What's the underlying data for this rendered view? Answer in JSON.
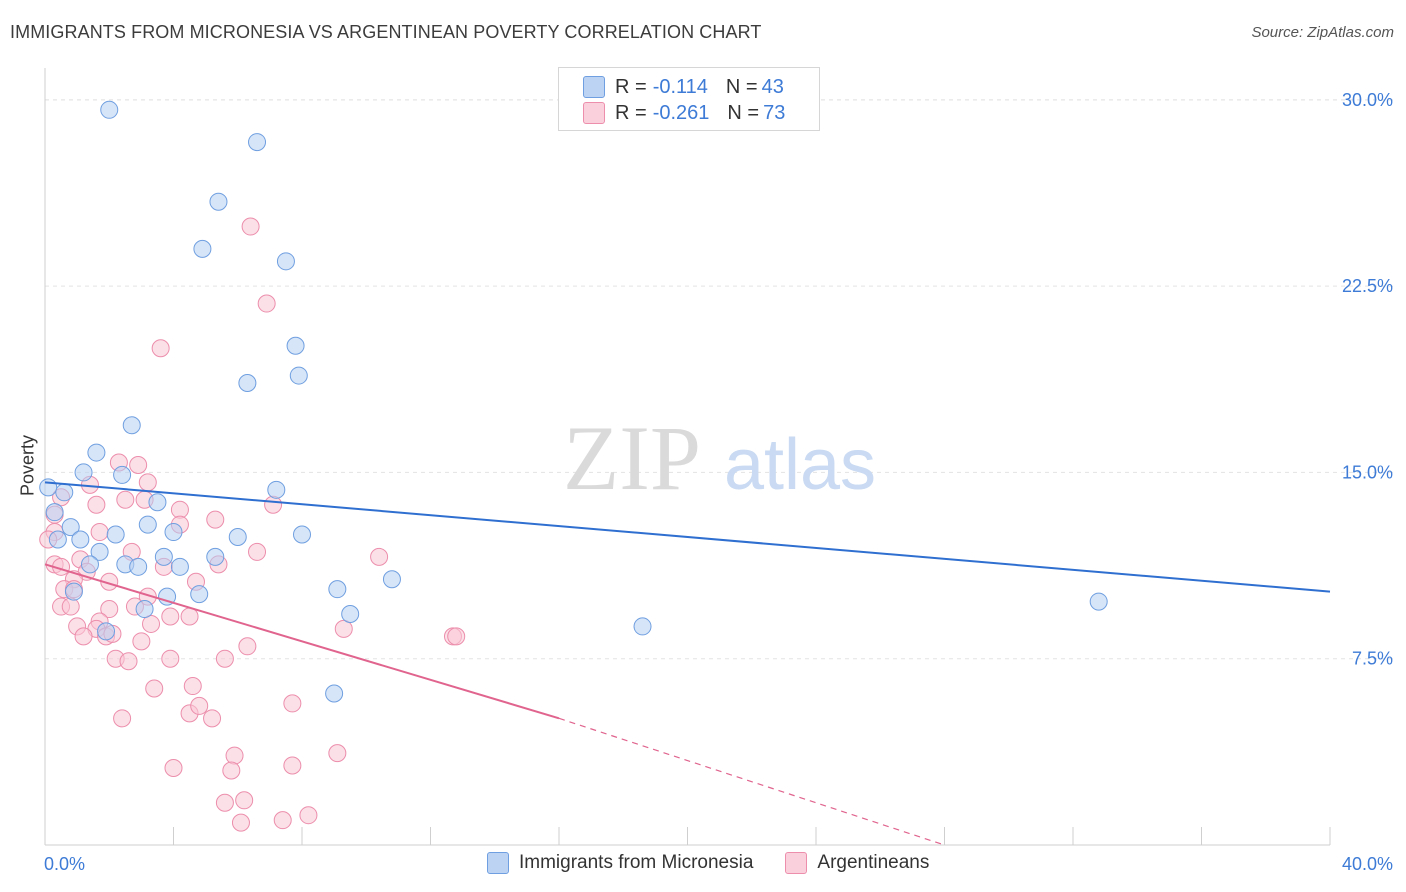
{
  "header": {
    "title": "IMMIGRANTS FROM MICRONESIA VS ARGENTINEAN POVERTY CORRELATION CHART",
    "source": "Source: ZipAtlas.com"
  },
  "watermark": {
    "zip": "ZIP",
    "atlas": "atlas"
  },
  "legend": {
    "rows": [
      {
        "r_label": "R = ",
        "r_value": "-0.114",
        "n_label": "N = ",
        "n_value": "43",
        "color": "#aac8f0",
        "border": "#6f9fe0"
      },
      {
        "r_label": "R = ",
        "r_value": "-0.261",
        "n_label": "N = ",
        "n_value": "73",
        "color": "#f9c3d3",
        "border": "#ec8eac"
      }
    ]
  },
  "bottom_legend": [
    {
      "label": "Immigrants from Micronesia",
      "color": "#aac8f0",
      "border": "#6f9fe0"
    },
    {
      "label": "Argentineans",
      "color": "#f9c3d3",
      "border": "#ec8eac"
    }
  ],
  "chart_data": {
    "type": "scatter",
    "title": "IMMIGRANTS FROM MICRONESIA VS ARGENTINEAN POVERTY CORRELATION CHART",
    "xlabel": "",
    "ylabel": "Poverty",
    "xlim": [
      0,
      40
    ],
    "ylim": [
      0,
      30
    ],
    "x_tick_labels": [
      "0.0%",
      "40.0%"
    ],
    "y_ticks": [
      7.5,
      15.0,
      22.5,
      30.0
    ],
    "y_tick_labels": [
      "7.5%",
      "15.0%",
      "22.5%",
      "30.0%"
    ],
    "grid": true,
    "series": [
      {
        "name": "Immigrants from Micronesia",
        "color": "#6f9fe0",
        "fill": "#b7d0f3",
        "trend": {
          "x": [
            0,
            40
          ],
          "y": [
            14.6,
            10.2
          ],
          "color": "#2f6fd0"
        },
        "points": [
          [
            2.0,
            29.6
          ],
          [
            6.6,
            28.3
          ],
          [
            5.4,
            25.9
          ],
          [
            7.5,
            23.5
          ],
          [
            4.9,
            24.0
          ],
          [
            7.8,
            20.1
          ],
          [
            7.9,
            18.9
          ],
          [
            6.3,
            18.6
          ],
          [
            2.7,
            16.9
          ],
          [
            1.6,
            15.8
          ],
          [
            1.2,
            15.0
          ],
          [
            2.4,
            14.9
          ],
          [
            0.1,
            14.4
          ],
          [
            0.6,
            14.2
          ],
          [
            3.5,
            13.8
          ],
          [
            7.2,
            14.3
          ],
          [
            0.3,
            13.4
          ],
          [
            0.8,
            12.8
          ],
          [
            3.2,
            12.9
          ],
          [
            4.0,
            12.6
          ],
          [
            2.2,
            12.5
          ],
          [
            6.0,
            12.4
          ],
          [
            8.0,
            12.5
          ],
          [
            0.4,
            12.3
          ],
          [
            1.1,
            12.3
          ],
          [
            1.7,
            11.8
          ],
          [
            2.5,
            11.3
          ],
          [
            2.9,
            11.2
          ],
          [
            3.7,
            11.6
          ],
          [
            5.3,
            11.6
          ],
          [
            4.2,
            11.2
          ],
          [
            1.4,
            11.3
          ],
          [
            10.8,
            10.7
          ],
          [
            0.9,
            10.2
          ],
          [
            9.1,
            10.3
          ],
          [
            3.8,
            10.0
          ],
          [
            4.8,
            10.1
          ],
          [
            3.1,
            9.5
          ],
          [
            9.5,
            9.3
          ],
          [
            32.8,
            9.8
          ],
          [
            18.6,
            8.8
          ],
          [
            1.9,
            8.6
          ],
          [
            9.0,
            6.1
          ]
        ]
      },
      {
        "name": "Argentineans",
        "color": "#ec8eac",
        "fill": "#f9c7d6",
        "trend": {
          "x": [
            0,
            16.0
          ],
          "y": [
            11.3,
            5.1
          ],
          "color": "#e0648e",
          "dash_to": [
            28.0,
            0.0
          ]
        },
        "points": [
          [
            6.4,
            24.9
          ],
          [
            6.9,
            21.8
          ],
          [
            3.6,
            20.0
          ],
          [
            2.3,
            15.4
          ],
          [
            2.9,
            15.3
          ],
          [
            1.4,
            14.5
          ],
          [
            3.2,
            14.6
          ],
          [
            0.5,
            14.0
          ],
          [
            2.5,
            13.9
          ],
          [
            3.1,
            13.9
          ],
          [
            1.6,
            13.7
          ],
          [
            7.1,
            13.7
          ],
          [
            4.2,
            13.5
          ],
          [
            0.3,
            13.3
          ],
          [
            5.3,
            13.1
          ],
          [
            4.2,
            12.9
          ],
          [
            0.3,
            12.6
          ],
          [
            1.7,
            12.6
          ],
          [
            0.1,
            12.3
          ],
          [
            2.7,
            11.8
          ],
          [
            6.6,
            11.8
          ],
          [
            10.4,
            11.6
          ],
          [
            1.1,
            11.5
          ],
          [
            0.3,
            11.3
          ],
          [
            0.5,
            11.2
          ],
          [
            3.7,
            11.2
          ],
          [
            5.4,
            11.3
          ],
          [
            1.3,
            11.0
          ],
          [
            0.9,
            10.7
          ],
          [
            2.0,
            10.6
          ],
          [
            4.7,
            10.6
          ],
          [
            0.6,
            10.3
          ],
          [
            0.9,
            10.3
          ],
          [
            3.2,
            10.0
          ],
          [
            0.5,
            9.6
          ],
          [
            0.8,
            9.6
          ],
          [
            2.0,
            9.5
          ],
          [
            2.8,
            9.6
          ],
          [
            3.9,
            9.2
          ],
          [
            4.5,
            9.2
          ],
          [
            1.7,
            9.0
          ],
          [
            1.0,
            8.8
          ],
          [
            1.6,
            8.7
          ],
          [
            3.3,
            8.9
          ],
          [
            9.3,
            8.7
          ],
          [
            1.2,
            8.4
          ],
          [
            1.9,
            8.4
          ],
          [
            2.1,
            8.5
          ],
          [
            3.0,
            8.2
          ],
          [
            6.3,
            8.0
          ],
          [
            12.7,
            8.4
          ],
          [
            12.8,
            8.4
          ],
          [
            2.2,
            7.5
          ],
          [
            2.6,
            7.4
          ],
          [
            3.9,
            7.5
          ],
          [
            5.6,
            7.5
          ],
          [
            3.4,
            6.3
          ],
          [
            4.6,
            6.4
          ],
          [
            7.7,
            5.7
          ],
          [
            4.5,
            5.3
          ],
          [
            4.8,
            5.6
          ],
          [
            5.2,
            5.1
          ],
          [
            2.4,
            5.1
          ],
          [
            5.9,
            3.6
          ],
          [
            9.1,
            3.7
          ],
          [
            7.7,
            3.2
          ],
          [
            4.0,
            3.1
          ],
          [
            5.8,
            3.0
          ],
          [
            6.2,
            1.8
          ],
          [
            5.6,
            1.7
          ],
          [
            8.2,
            1.2
          ],
          [
            6.1,
            0.9
          ],
          [
            7.4,
            1.0
          ]
        ]
      }
    ]
  }
}
